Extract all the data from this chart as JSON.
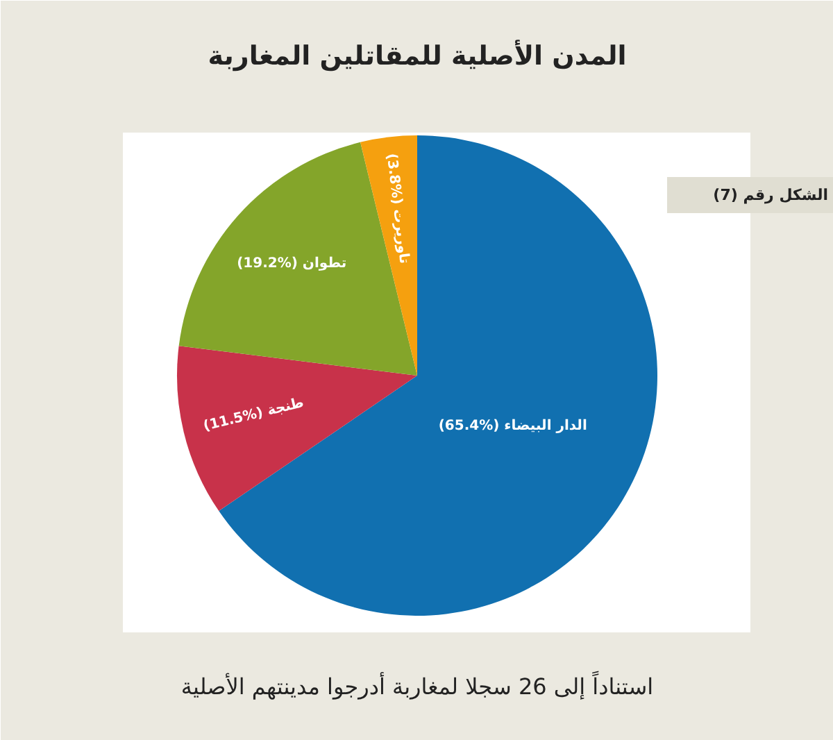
{
  "chart_data": {
    "type": "pie",
    "title": "المدن الأصلية للمقاتلين المغاربة",
    "categories": [
      "الدار البيضاء",
      "طنجة",
      "تطوان",
      "تاوريرت"
    ],
    "values": [
      65.4,
      11.5,
      19.2,
      3.8
    ],
    "value_labels": [
      "(%65.4)",
      "(%11.5)",
      "(%19.2)",
      "(%3.8)"
    ],
    "colors": [
      "#1170b0",
      "#c8324a",
      "#84a52a",
      "#f5a00f"
    ],
    "annotations": [
      "الشكل رقم (7)",
      "استناداً إلى 26 سجلا لمغاربة أدرجوا مدينتهم الأصلية"
    ]
  }
}
